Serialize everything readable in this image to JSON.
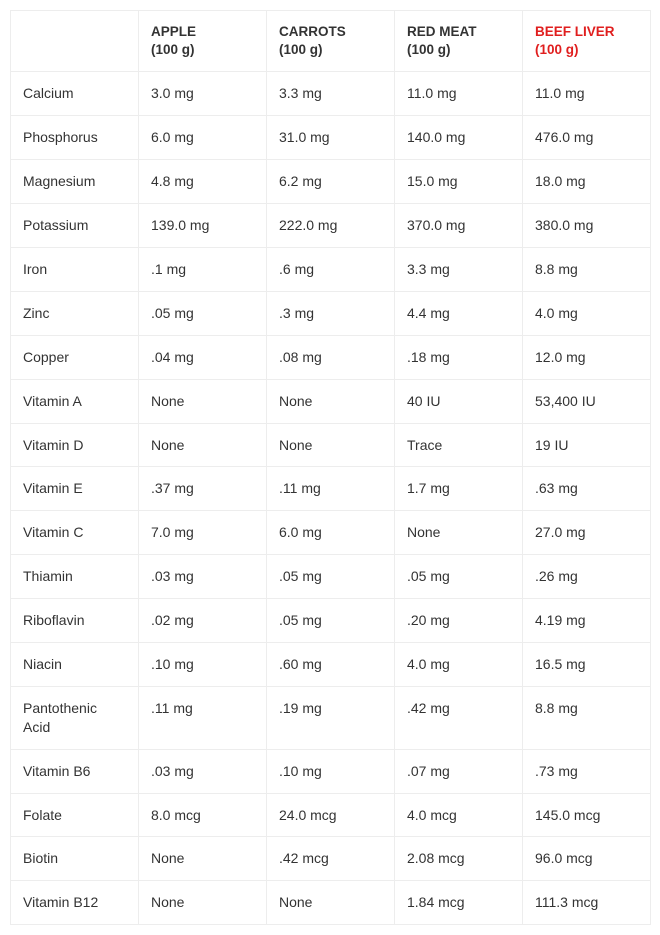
{
  "table": {
    "columns": [
      {
        "line1": "",
        "line2": "",
        "highlight": false
      },
      {
        "line1": "APPLE",
        "line2": "(100 g)",
        "highlight": false
      },
      {
        "line1": "CARROTS",
        "line2": "(100 g)",
        "highlight": false
      },
      {
        "line1": "RED MEAT",
        "line2": "(100 g)",
        "highlight": false
      },
      {
        "line1": "BEEF LIVER",
        "line2": "(100 g)",
        "highlight": true
      }
    ],
    "rows": [
      {
        "nutrient": "Calcium",
        "values": [
          "3.0 mg",
          "3.3 mg",
          "11.0 mg",
          "11.0 mg"
        ]
      },
      {
        "nutrient": "Phosphorus",
        "values": [
          "6.0 mg",
          "31.0 mg",
          "140.0 mg",
          "476.0 mg"
        ]
      },
      {
        "nutrient": "Magnesium",
        "values": [
          "4.8 mg",
          "6.2 mg",
          "15.0 mg",
          "18.0 mg"
        ]
      },
      {
        "nutrient": "Potassium",
        "values": [
          "139.0 mg",
          "222.0 mg",
          "370.0 mg",
          "380.0 mg"
        ]
      },
      {
        "nutrient": "Iron",
        "values": [
          ".1 mg",
          ".6 mg",
          "3.3 mg",
          "8.8 mg"
        ]
      },
      {
        "nutrient": "Zinc",
        "values": [
          ".05 mg",
          ".3 mg",
          "4.4 mg",
          "4.0 mg"
        ]
      },
      {
        "nutrient": "Copper",
        "values": [
          ".04 mg",
          ".08 mg",
          ".18 mg",
          "12.0 mg"
        ]
      },
      {
        "nutrient": "Vitamin A",
        "values": [
          "None",
          "None",
          "40 IU",
          "53,400 IU"
        ]
      },
      {
        "nutrient": "Vitamin D",
        "values": [
          "None",
          "None",
          "Trace",
          "19 IU"
        ]
      },
      {
        "nutrient": "Vitamin E",
        "values": [
          ".37 mg",
          ".11 mg",
          "1.7 mg",
          ".63 mg"
        ]
      },
      {
        "nutrient": "Vitamin C",
        "values": [
          "7.0 mg",
          "6.0 mg",
          "None",
          "27.0 mg"
        ]
      },
      {
        "nutrient": "Thiamin",
        "values": [
          ".03 mg",
          ".05 mg",
          ".05 mg",
          ".26 mg"
        ]
      },
      {
        "nutrient": "Riboflavin",
        "values": [
          ".02 mg",
          ".05 mg",
          ".20 mg",
          "4.19 mg"
        ]
      },
      {
        "nutrient": "Niacin",
        "values": [
          ".10 mg",
          ".60 mg",
          "4.0 mg",
          "16.5 mg"
        ]
      },
      {
        "nutrient": "Pantothenic Acid",
        "values": [
          ".11 mg",
          ".19 mg",
          ".42 mg",
          "8.8 mg"
        ]
      },
      {
        "nutrient": "Vitamin B6",
        "values": [
          ".03 mg",
          ".10 mg",
          ".07 mg",
          ".73 mg"
        ]
      },
      {
        "nutrient": "Folate",
        "values": [
          "8.0 mcg",
          "24.0 mcg",
          "4.0 mcg",
          "145.0 mcg"
        ]
      },
      {
        "nutrient": "Biotin",
        "values": [
          "None",
          ".42 mcg",
          "2.08 mcg",
          "96.0 mcg"
        ]
      },
      {
        "nutrient": "Vitamin B12",
        "values": [
          "None",
          "None",
          "1.84 mcg",
          "111.3 mcg"
        ]
      }
    ],
    "style": {
      "border_color": "#ededed",
      "text_color": "#333333",
      "highlight_color": "#e01e1e",
      "font_size_body": 14,
      "font_size_header": 13.5,
      "header_weight": 700
    }
  }
}
